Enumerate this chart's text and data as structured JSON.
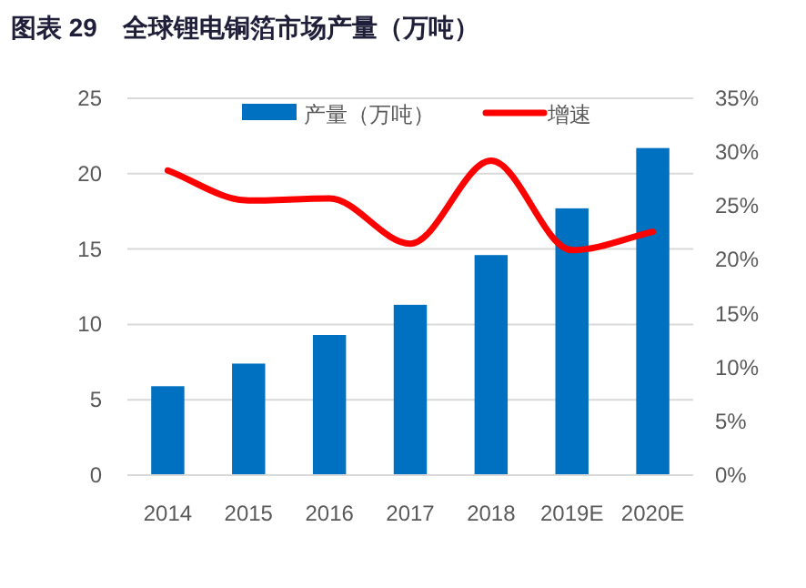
{
  "chart_data": {
    "type": "bar",
    "title": "图表 29　全球锂电铜箔市场产量（万吨）",
    "categories": [
      "2014",
      "2015",
      "2016",
      "2017",
      "2018",
      "2019E",
      "2020E"
    ],
    "series": [
      {
        "name": "产量（万吨）",
        "color": "#0070c0",
        "values": [
          5.9,
          7.4,
          9.3,
          11.3,
          14.6,
          17.7,
          21.7
        ]
      },
      {
        "name": "增速",
        "type": "line",
        "axis": "y2",
        "color": "#ff0000",
        "values": [
          28.3,
          25.5,
          25.7,
          21.5,
          29.2,
          20.9,
          22.6
        ]
      }
    ],
    "ylim": [
      0,
      25
    ],
    "yticks": [
      0,
      5,
      10,
      15,
      20,
      25
    ],
    "y2lim": [
      0,
      35
    ],
    "y2ticks": [
      {
        "value": 0,
        "label": "0%"
      },
      {
        "value": 5,
        "label": "5%"
      },
      {
        "value": 10,
        "label": "10%"
      },
      {
        "value": 15,
        "label": "15%"
      },
      {
        "value": 20,
        "label": "20%"
      },
      {
        "value": 25,
        "label": "25%"
      },
      {
        "value": 30,
        "label": "30%"
      },
      {
        "value": 35,
        "label": "35%"
      }
    ],
    "grid": "y",
    "legend": "top",
    "marker": "none",
    "line_style": "solid"
  }
}
